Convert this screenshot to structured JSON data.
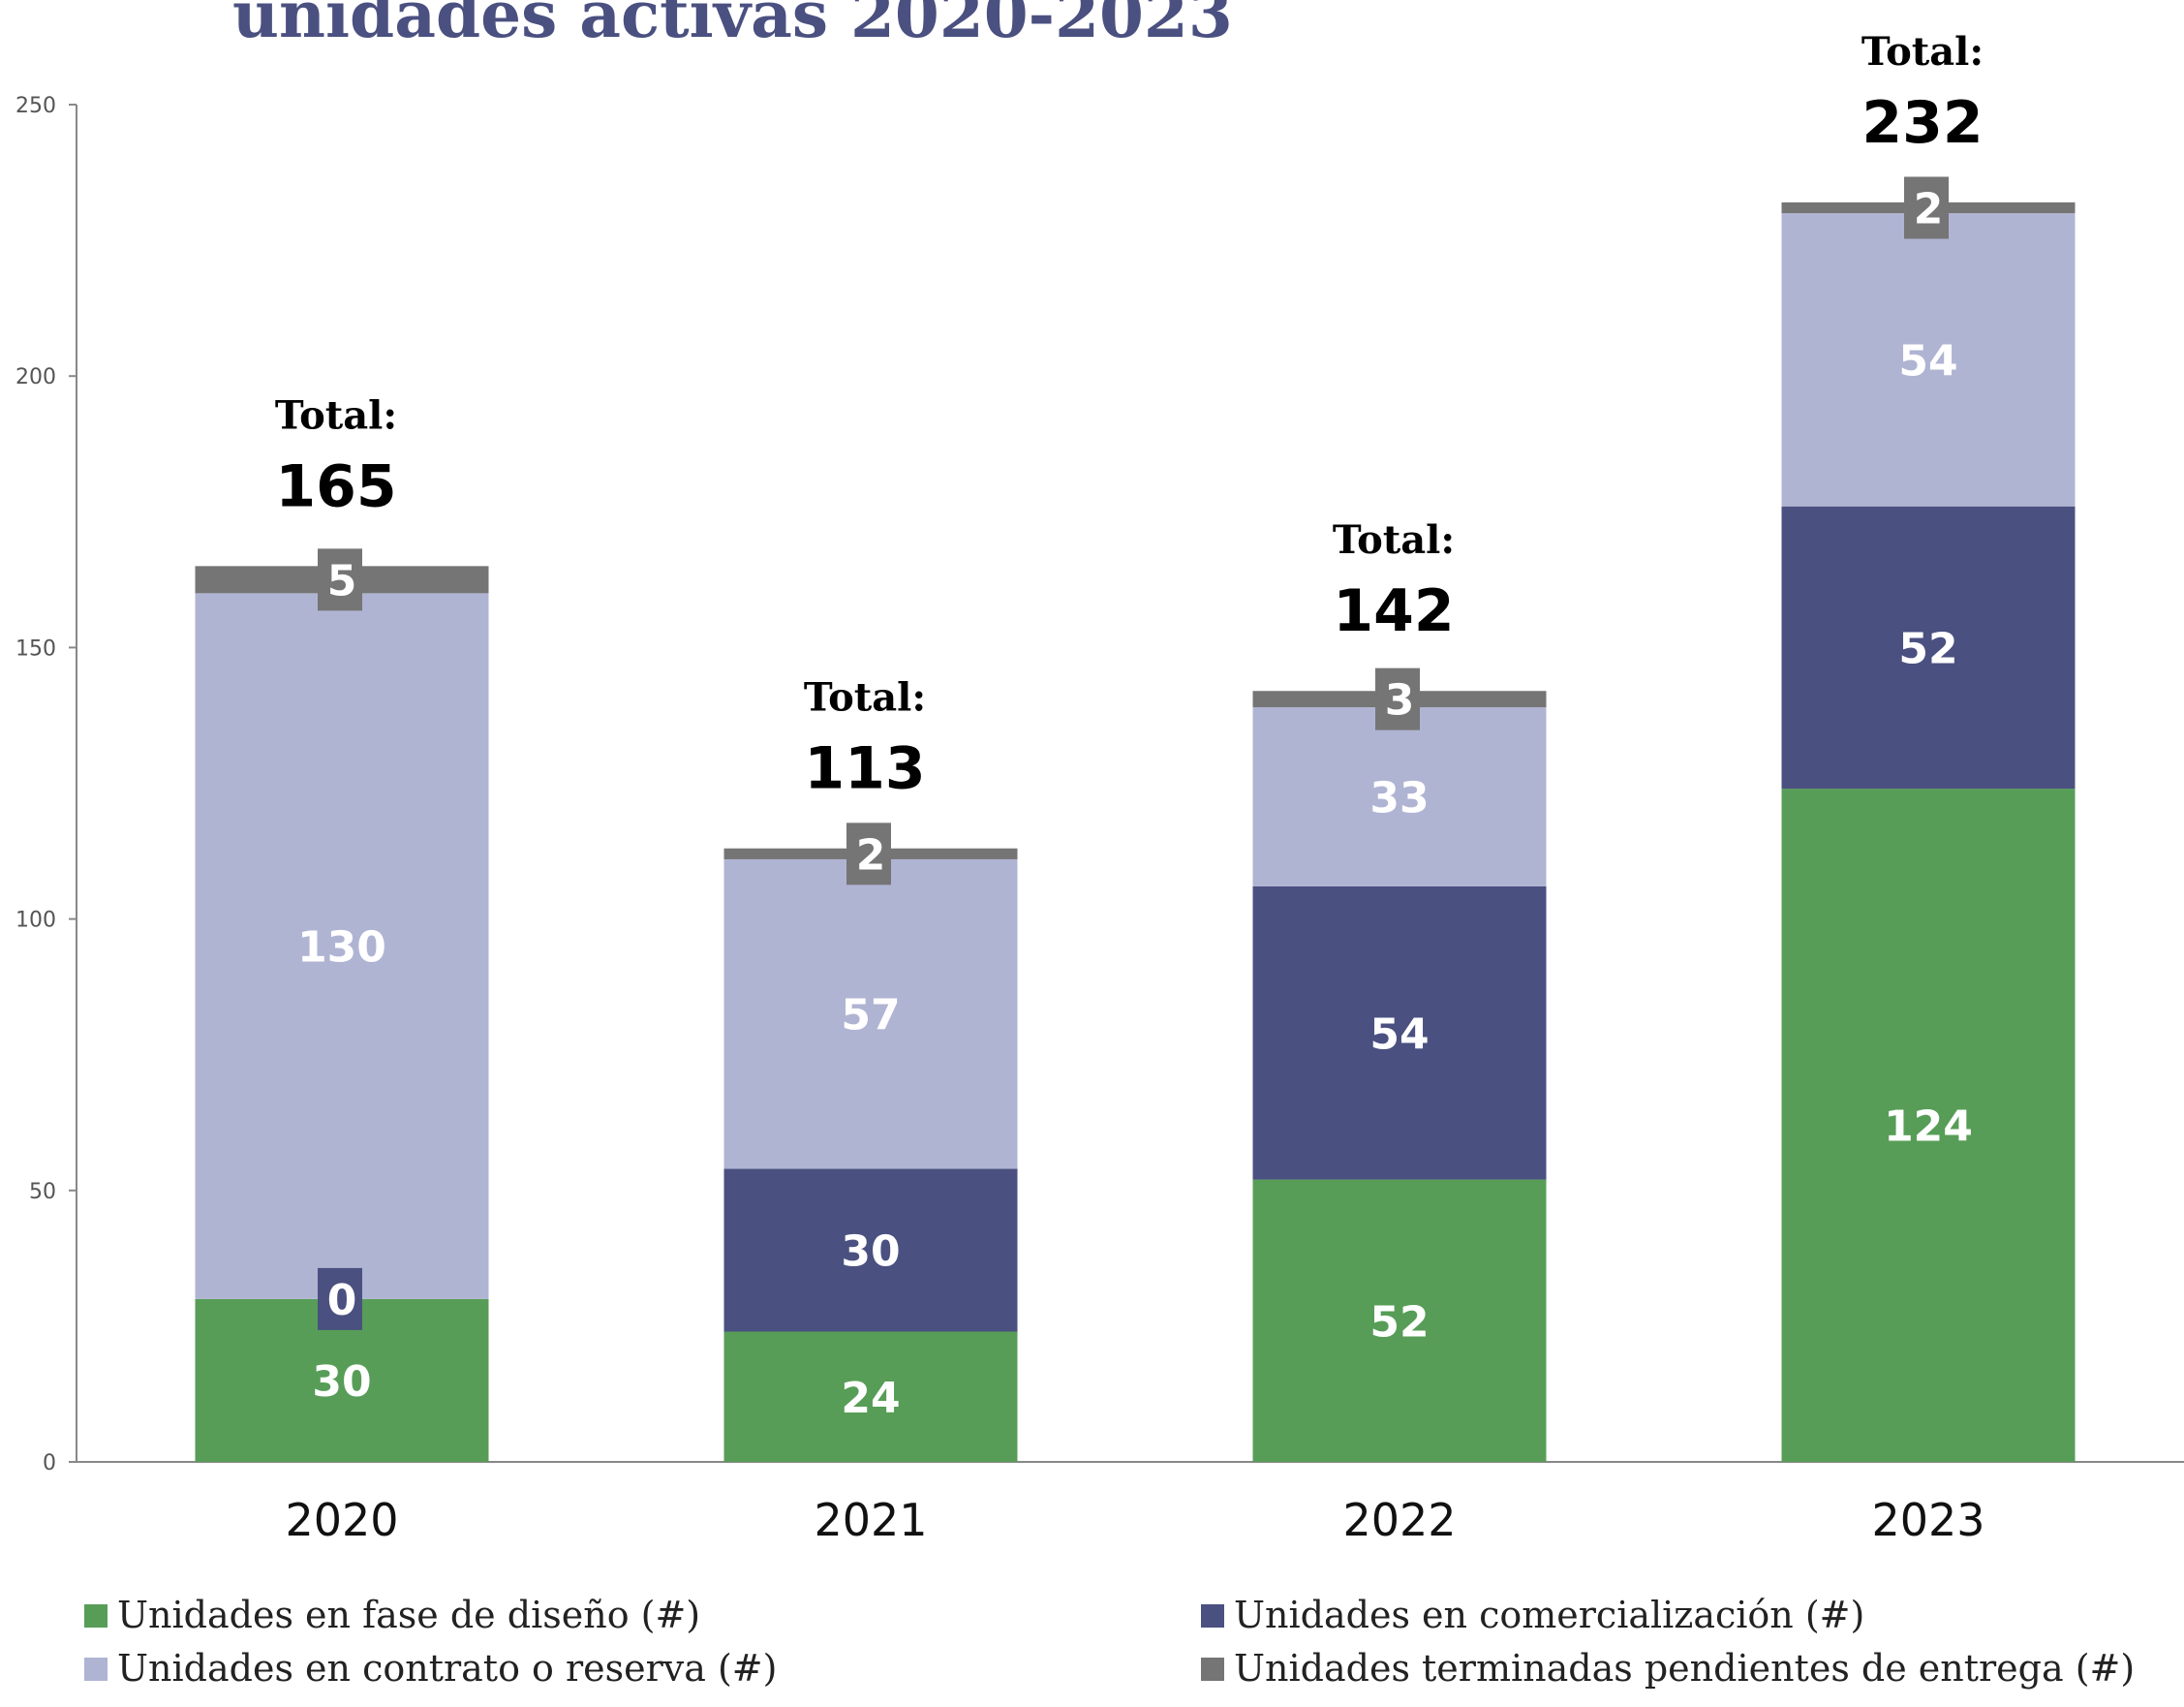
{
  "chart_data": {
    "type": "bar",
    "stacked": true,
    "title": "unidades activas 2020-2023",
    "categories": [
      "2020",
      "2021",
      "2022",
      "2023"
    ],
    "series": [
      {
        "name": "Unidades en fase de diseño (#)",
        "values": [
          30,
          24,
          52,
          124
        ],
        "color": "#579d57"
      },
      {
        "name": "Unidades en comercialización (#)",
        "values": [
          0,
          30,
          54,
          52
        ],
        "color": "#4a5080"
      },
      {
        "name": "Unidades en contrato o reserva  (#)",
        "values": [
          130,
          57,
          33,
          54
        ],
        "color": "#b0b4d3"
      },
      {
        "name": "Unidades terminadas pendientes de entrega (#)",
        "values": [
          5,
          2,
          3,
          2
        ],
        "color": "#757575"
      }
    ],
    "totals": {
      "caption": "Total:",
      "values": [
        165,
        113,
        142,
        232
      ]
    },
    "yticks": [
      0,
      50,
      100,
      150,
      200,
      250
    ],
    "ylim": [
      0,
      250
    ],
    "xlabel": "",
    "ylabel": "",
    "grid": false,
    "legend": "bottom"
  }
}
